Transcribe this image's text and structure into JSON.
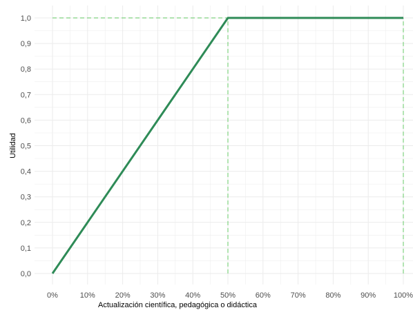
{
  "chart_data": {
    "type": "line",
    "title": "",
    "xlabel": "Actualización científica, pedagógica o didáctica",
    "ylabel": "Utilidad",
    "x_ticks": [
      "0%",
      "10%",
      "20%",
      "30%",
      "40%",
      "50%",
      "60%",
      "70%",
      "80%",
      "90%",
      "100%"
    ],
    "y_ticks": [
      "0,0",
      "0,1",
      "0,2",
      "0,3",
      "0,4",
      "0,5",
      "0,6",
      "0,7",
      "0,8",
      "0,9",
      "1,0"
    ],
    "xlim": [
      0,
      100
    ],
    "ylim": [
      0,
      1
    ],
    "grid": true,
    "legend": "none",
    "series": [
      {
        "x": [
          0,
          50,
          100
        ],
        "y": [
          0,
          1,
          1
        ],
        "color": "#2e8b57"
      }
    ],
    "reference_lines": [
      {
        "orientation": "horizontal",
        "value": 1.0,
        "style": "dashed",
        "color": "#7fd17f"
      },
      {
        "orientation": "vertical",
        "value": 50,
        "style": "dashed",
        "color": "#7fd17f"
      },
      {
        "orientation": "vertical",
        "value": 100,
        "style": "dashed",
        "color": "#7fd17f"
      }
    ],
    "colors": {
      "grid": "#ebebeb",
      "tick_text": "#4d4d4d",
      "series": "#2e8b57",
      "reference": "#7fd17f"
    }
  }
}
